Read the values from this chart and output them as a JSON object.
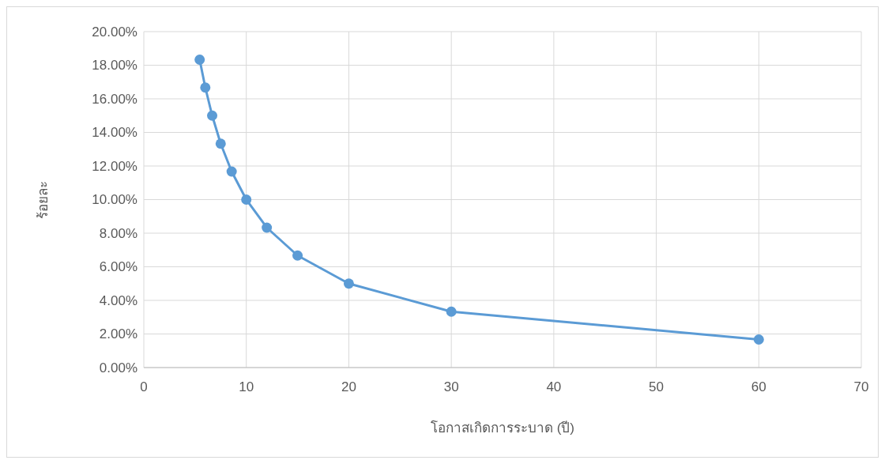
{
  "chart_data": {
    "type": "line",
    "xlabel": "โอกาสเกิดการระบาด (ปี)",
    "ylabel": "ร้อยละ",
    "series": [
      {
        "color": "#5b9bd5",
        "x": [
          5.45,
          6,
          6.67,
          7.5,
          8.57,
          10,
          12,
          15,
          20,
          30,
          60
        ],
        "values": [
          18.33,
          16.67,
          15,
          13.33,
          11.67,
          10,
          8.33,
          6.67,
          5,
          3.33,
          1.67
        ]
      }
    ],
    "xlim": [
      0,
      70
    ],
    "xticks": [
      0,
      10,
      20,
      30,
      40,
      50,
      60,
      70
    ],
    "ylim": [
      0,
      20
    ],
    "yticks": [
      {
        "value": 0,
        "label": "0.00%"
      },
      {
        "value": 2,
        "label": "2.00%"
      },
      {
        "value": 4,
        "label": "4.00%"
      },
      {
        "value": 6,
        "label": "6.00%"
      },
      {
        "value": 8,
        "label": "8.00%"
      },
      {
        "value": 10,
        "label": "10.00%"
      },
      {
        "value": 12,
        "label": "12.00%"
      },
      {
        "value": 14,
        "label": "14.00%"
      },
      {
        "value": 16,
        "label": "16.00%"
      },
      {
        "value": 18,
        "label": "18.00%"
      },
      {
        "value": 20,
        "label": "20.00%"
      }
    ],
    "grid": true,
    "marker": "circle",
    "line_style": "solid"
  }
}
